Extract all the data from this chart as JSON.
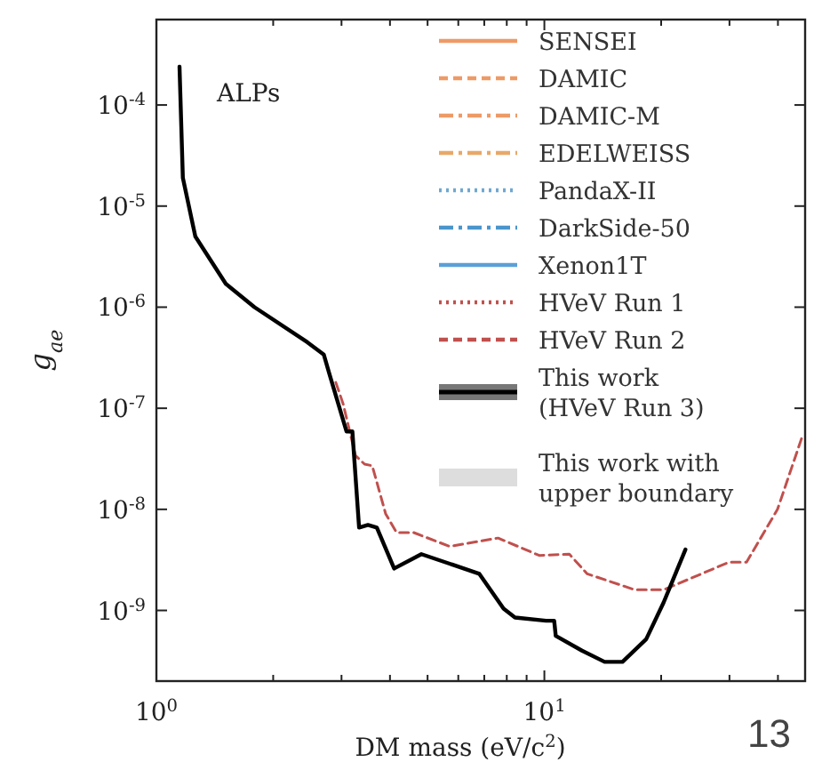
{
  "chart_data": {
    "type": "line",
    "xlabel": "DM mass (eV/c$^{2}$)",
    "ylabel": "g$_{ae}$",
    "log": "xy",
    "xlim": [
      1,
      47
    ],
    "ylim": [
      2e-10,
      0.0007
    ],
    "xticks": [
      {
        "value": 1,
        "label": "10$^{0}$"
      },
      {
        "value": 2,
        "label": null
      },
      {
        "value": 3,
        "label": null
      },
      {
        "value": 4,
        "label": null
      },
      {
        "value": 5,
        "label": null
      },
      {
        "value": 6,
        "label": null
      },
      {
        "value": 7,
        "label": null
      },
      {
        "value": 8,
        "label": null
      },
      {
        "value": 9,
        "label": null
      },
      {
        "value": 10,
        "label": "10$^{1}$"
      },
      {
        "value": 20,
        "label": null
      },
      {
        "value": 30,
        "label": null
      },
      {
        "value": 40,
        "label": null
      }
    ],
    "yticks": [
      {
        "value": 1e-09,
        "label": "10$^{-9}$"
      },
      {
        "value": 1e-08,
        "label": "10$^{-8}$"
      },
      {
        "value": 1e-07,
        "label": "10$^{-7}$"
      },
      {
        "value": 1e-06,
        "label": "10$^{-6}$"
      },
      {
        "value": 1e-05,
        "label": "10$^{-5}$"
      },
      {
        "value": 0.0001,
        "label": "10$^{-4}$"
      }
    ],
    "legend": "top right",
    "annotations": [
      "ALPs",
      "13"
    ],
    "series": [
      {
        "name": "SENSEI",
        "color": "#ee9a66",
        "line_style": "solid"
      },
      {
        "name": "DAMIC",
        "color": "#ee9a66",
        "line_style": "dashed"
      },
      {
        "name": "DAMIC-M",
        "color": "#ee9a66",
        "line_style": "dashdot"
      },
      {
        "name": "EDELWEISS",
        "color": "#e8a868",
        "line_style": "dashdot"
      },
      {
        "name": "PandaX-II",
        "color": "#6fa8d0",
        "line_style": "dotted"
      },
      {
        "name": "DarkSide-50",
        "color": "#4a95cc",
        "line_style": "dashdot"
      },
      {
        "name": "Xenon1T",
        "color": "#5aa0d8",
        "line_style": "solid"
      },
      {
        "name": "HVeV Run 1",
        "color": "#c0504d",
        "line_style": "dotted"
      },
      {
        "name": "HVeV Run 2",
        "color": "#c0504d",
        "line_style": "dashed",
        "x": [
          2.9,
          3.03,
          3.26,
          3.44,
          3.6,
          3.9,
          4.16,
          4.6,
          5.7,
          7.6,
          9.7,
          11.6,
          12.9,
          17.1,
          20.3,
          29.9,
          33.2,
          39.9,
          46
        ],
        "values": [
          1.8e-07,
          1.1e-07,
          3.4e-08,
          2.8e-08,
          2.7e-08,
          9e-09,
          5.9e-09,
          5.9e-09,
          4.3e-09,
          5.2e-09,
          3.5e-09,
          3.6e-09,
          2.3e-09,
          1.6e-09,
          1.6e-09,
          3e-09,
          3e-09,
          1e-08,
          5e-08
        ]
      },
      {
        "name": "This work\n(HVeV Run 3)",
        "color": "#000000",
        "line_style": "solid",
        "x": [
          1.147,
          1.17,
          1.26,
          1.51,
          1.79,
          2.45,
          2.7,
          2.79,
          3.09,
          3.2,
          3.33,
          3.51,
          3.7,
          4.1,
          4.82,
          5.7,
          6.8,
          7.85,
          8.4,
          10.1,
          10.6,
          10.7,
          12.5,
          14.3,
          15.9,
          18.3,
          20.3,
          23.1
        ],
        "values": [
          0.00024,
          1.9e-05,
          5e-06,
          1.7e-06,
          1e-06,
          4.5e-07,
          3.4e-07,
          2.2e-07,
          5.9e-08,
          5.9e-08,
          6.6e-09,
          7e-09,
          6.6e-09,
          2.6e-09,
          3.6e-09,
          2.9e-09,
          2.3e-09,
          1.04e-09,
          8.5e-10,
          7.9e-10,
          7.9e-10,
          5.6e-10,
          4e-10,
          3.1e-10,
          3.1e-10,
          5.2e-10,
          1.2e-09,
          4e-09
        ]
      },
      {
        "name": "This work with\nupper boundary",
        "type": "area",
        "color": "#dddddd"
      }
    ]
  }
}
